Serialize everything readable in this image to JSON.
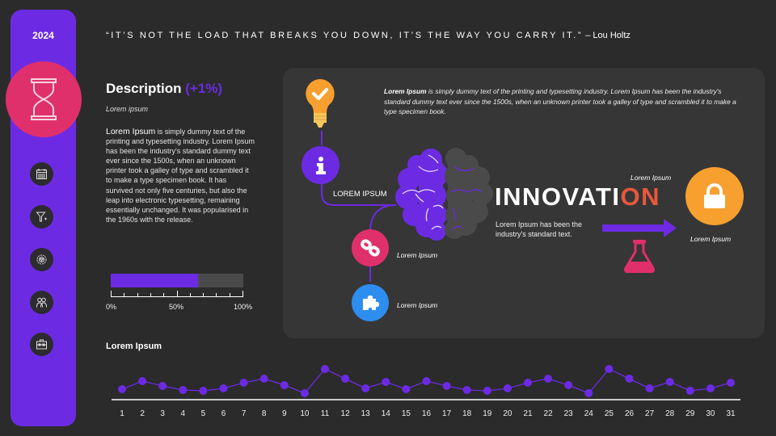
{
  "sidebar": {
    "year": "2024",
    "main_icon": "hourglass-icon",
    "items": [
      {
        "icon": "calendar-icon"
      },
      {
        "icon": "filter-icon"
      },
      {
        "icon": "gear-badge-icon"
      },
      {
        "icon": "team-icon"
      },
      {
        "icon": "briefcase-icon"
      }
    ]
  },
  "quote": {
    "text": "“IT’S NOT THE LOAD THAT BREAKS YOU DOWN, IT’S THE WAY YOU CARRY IT.”",
    "author": " – Lou Holtz"
  },
  "description": {
    "title": "Description",
    "change": "(+1%)",
    "subtitle": "Lorem ipsum",
    "body_lead": "Lorem Ipsum",
    "body": " is  simply dummy text of the printing and typesetting industry. Lorem Ipsum has been the industry's standard dummy text ever since the 1500s, when an unknown printer took a galley  of type and scrambled it to make a type specimen  book. It has survived not only five centuries, but also the leap into electronic typesetting, remaining essentially  unchanged. It was popularised in the 1960s with the release.",
    "progress_percent": 66,
    "scale_labels": [
      "0%",
      "50%",
      "100%"
    ]
  },
  "panel": {
    "text_lead": "Lorem Ipsum",
    "text": " is simply dummy text of the printing and typesetting industry. Lorem Ipsum has been the industry's standard dummy text ever since the 1500s, when an unknown printer took a galley of type and scrambled it to make a type specimen book.",
    "info_label": "LOREM IPSUM",
    "link_label": "Lorem Ipsum",
    "puzzle_label": "Lorem Ipsum",
    "innovation_main": "INNOVATI",
    "innovation_accent": "ON",
    "innovation_desc": "Lorem Ipsum has been the industry's standard text.",
    "lock_top_label": "Lorem Ipsum",
    "lock_bottom_label": "Lorem Ipsum",
    "icons": [
      "lightbulb-check-icon",
      "info-icon",
      "brain-icon",
      "link-icon",
      "puzzle-icon",
      "arrow-right-icon",
      "flask-icon",
      "lock-icon"
    ]
  },
  "colors": {
    "background": "#2b2b2b",
    "panel": "#363636",
    "purple": "#6c2be3",
    "pink": "#e0306c",
    "orange": "#f7a030",
    "blue": "#2e8ef0",
    "red_accent": "#e9573f",
    "gray": "#4a4a4a"
  },
  "chart": {
    "title": "Lorem Ipsum"
  },
  "chart_data": {
    "type": "line",
    "title": "Lorem Ipsum",
    "xlabel": "",
    "ylabel": "",
    "categories": [
      "1",
      "2",
      "3",
      "4",
      "5",
      "6",
      "7",
      "8",
      "9",
      "10",
      "11",
      "12",
      "13",
      "14",
      "15",
      "16",
      "17",
      "18",
      "19",
      "20",
      "21",
      "22",
      "23",
      "24",
      "25",
      "26",
      "27",
      "28",
      "29",
      "30",
      "31"
    ],
    "series": [
      {
        "name": "Lorem Ipsum",
        "values": [
          13,
          23,
          17,
          12,
          11,
          14,
          21,
          26,
          18,
          8,
          38,
          26,
          14,
          22,
          13,
          23,
          17,
          12,
          11,
          14,
          21,
          26,
          18,
          8,
          38,
          26,
          14,
          22,
          11,
          14,
          21
        ]
      }
    ],
    "ylim": [
      0,
      45
    ],
    "grid": false,
    "legend": "none"
  }
}
